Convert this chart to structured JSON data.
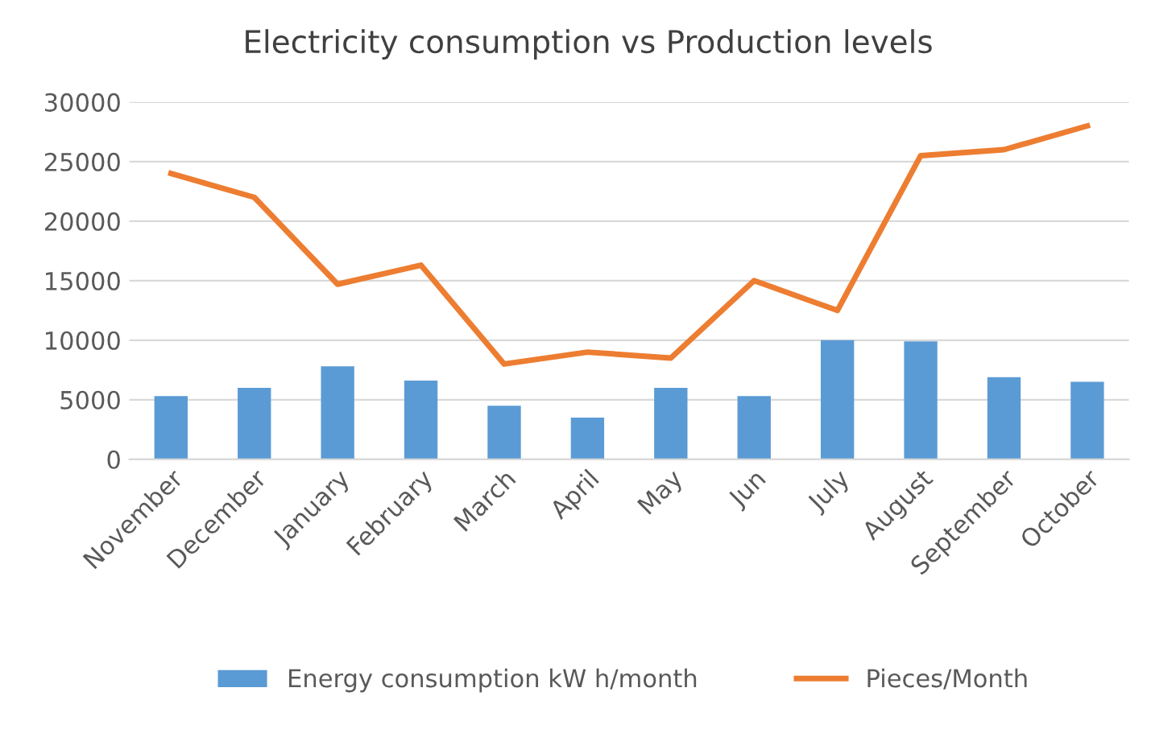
{
  "chart_data": {
    "type": "bar",
    "title": "Electricity consumption vs Production levels",
    "categories": [
      "November",
      "December",
      "January",
      "February",
      "March",
      "April",
      "May",
      "Jun",
      "July",
      "August",
      "September",
      "October"
    ],
    "series": [
      {
        "name": "Energy consumption kW h/month",
        "color": "#5b9bd5",
        "values": [
          5300,
          6000,
          7800,
          6600,
          4500,
          3500,
          6000,
          5300,
          10000,
          9900,
          6900,
          6500
        ]
      },
      {
        "name": "Pieces/Month",
        "type": "line",
        "color": "#ed7d31",
        "values": [
          24000,
          22000,
          14700,
          16300,
          8000,
          9000,
          8500,
          15000,
          12500,
          25500,
          26000,
          28000
        ]
      }
    ],
    "ylim": [
      0,
      30000
    ],
    "yticks": [
      0,
      5000,
      10000,
      15000,
      20000,
      25000,
      30000
    ],
    "grid": "y",
    "legend": "bottom"
  }
}
